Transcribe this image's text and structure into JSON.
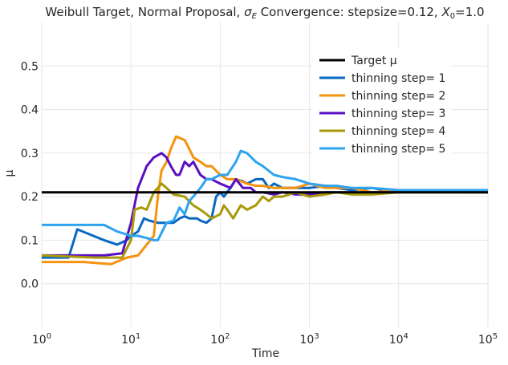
{
  "chart_data": {
    "type": "line",
    "title_parts": {
      "prefix": "Weibull Target, Normal Proposal, ",
      "sigma": "σ",
      "sigma_sub": "E",
      "middle": " Convergence: stepsize=0.12, ",
      "x": "X",
      "x_sub": "0",
      "suffix": "=1.0"
    },
    "xlabel": "Time",
    "ylabel": "μ",
    "x_scale": "log",
    "xlim": [
      1,
      100000
    ],
    "ylim": [
      -0.1,
      0.6
    ],
    "grid": true,
    "legend_position": "top-right",
    "x_ticks": [
      {
        "value": 1,
        "base": "10",
        "exp": "0"
      },
      {
        "value": 10,
        "base": "10",
        "exp": "1"
      },
      {
        "value": 100,
        "base": "10",
        "exp": "2"
      },
      {
        "value": 1000,
        "base": "10",
        "exp": "3"
      },
      {
        "value": 10000,
        "base": "10",
        "exp": "4"
      },
      {
        "value": 100000,
        "base": "10",
        "exp": "5"
      }
    ],
    "y_ticks": [
      {
        "value": 0.0,
        "label": "0.0"
      },
      {
        "value": 0.1,
        "label": "0.1"
      },
      {
        "value": 0.2,
        "label": "0.2"
      },
      {
        "value": 0.3,
        "label": "0.3"
      },
      {
        "value": 0.4,
        "label": "0.4"
      },
      {
        "value": 0.5,
        "label": "0.5"
      }
    ],
    "series": [
      {
        "name": "Target μ",
        "color": "#000000",
        "points": [
          [
            1,
            0.21
          ],
          [
            100000,
            0.21
          ]
        ]
      },
      {
        "name": "thinning step= 1",
        "color": "#0868c4",
        "points": [
          [
            1,
            0.06
          ],
          [
            2,
            0.06
          ],
          [
            2.5,
            0.125
          ],
          [
            5,
            0.1
          ],
          [
            7,
            0.09
          ],
          [
            9,
            0.1
          ],
          [
            10,
            0.11
          ],
          [
            12,
            0.12
          ],
          [
            14,
            0.15
          ],
          [
            16,
            0.145
          ],
          [
            20,
            0.14
          ],
          [
            25,
            0.14
          ],
          [
            30,
            0.14
          ],
          [
            35,
            0.15
          ],
          [
            40,
            0.155
          ],
          [
            45,
            0.15
          ],
          [
            55,
            0.15
          ],
          [
            60,
            0.145
          ],
          [
            70,
            0.14
          ],
          [
            80,
            0.15
          ],
          [
            90,
            0.2
          ],
          [
            100,
            0.21
          ],
          [
            110,
            0.2
          ],
          [
            130,
            0.22
          ],
          [
            150,
            0.24
          ],
          [
            180,
            0.235
          ],
          [
            200,
            0.23
          ],
          [
            250,
            0.24
          ],
          [
            300,
            0.24
          ],
          [
            350,
            0.22
          ],
          [
            400,
            0.23
          ],
          [
            500,
            0.22
          ],
          [
            700,
            0.22
          ],
          [
            1000,
            0.22
          ],
          [
            1500,
            0.225
          ],
          [
            2000,
            0.22
          ],
          [
            3000,
            0.215
          ],
          [
            5000,
            0.22
          ],
          [
            7000,
            0.215
          ],
          [
            10000,
            0.215
          ],
          [
            20000,
            0.215
          ],
          [
            50000,
            0.215
          ],
          [
            100000,
            0.215
          ]
        ]
      },
      {
        "name": "thinning step= 2",
        "color": "#f5920f",
        "points": [
          [
            1,
            0.05
          ],
          [
            3,
            0.05
          ],
          [
            6,
            0.045
          ],
          [
            9,
            0.06
          ],
          [
            12,
            0.065
          ],
          [
            15,
            0.09
          ],
          [
            18,
            0.11
          ],
          [
            20,
            0.2
          ],
          [
            22,
            0.26
          ],
          [
            25,
            0.28
          ],
          [
            28,
            0.31
          ],
          [
            32,
            0.338
          ],
          [
            35,
            0.335
          ],
          [
            40,
            0.33
          ],
          [
            45,
            0.31
          ],
          [
            50,
            0.29
          ],
          [
            60,
            0.28
          ],
          [
            70,
            0.27
          ],
          [
            80,
            0.27
          ],
          [
            100,
            0.25
          ],
          [
            120,
            0.24
          ],
          [
            150,
            0.24
          ],
          [
            200,
            0.23
          ],
          [
            250,
            0.225
          ],
          [
            300,
            0.225
          ],
          [
            400,
            0.22
          ],
          [
            500,
            0.22
          ],
          [
            700,
            0.22
          ],
          [
            1000,
            0.23
          ],
          [
            1500,
            0.22
          ],
          [
            2000,
            0.22
          ],
          [
            3000,
            0.22
          ],
          [
            5000,
            0.21
          ],
          [
            10000,
            0.215
          ],
          [
            20000,
            0.215
          ],
          [
            50000,
            0.21
          ],
          [
            100000,
            0.21
          ]
        ]
      },
      {
        "name": "thinning step= 3",
        "color": "#5a0ec4",
        "points": [
          [
            1,
            0.065
          ],
          [
            5,
            0.065
          ],
          [
            8,
            0.07
          ],
          [
            10,
            0.14
          ],
          [
            12,
            0.22
          ],
          [
            15,
            0.27
          ],
          [
            18,
            0.29
          ],
          [
            22,
            0.3
          ],
          [
            25,
            0.29
          ],
          [
            28,
            0.27
          ],
          [
            32,
            0.25
          ],
          [
            35,
            0.25
          ],
          [
            40,
            0.28
          ],
          [
            45,
            0.27
          ],
          [
            50,
            0.28
          ],
          [
            60,
            0.25
          ],
          [
            70,
            0.24
          ],
          [
            80,
            0.24
          ],
          [
            100,
            0.23
          ],
          [
            130,
            0.22
          ],
          [
            150,
            0.24
          ],
          [
            180,
            0.22
          ],
          [
            220,
            0.22
          ],
          [
            250,
            0.21
          ],
          [
            300,
            0.21
          ],
          [
            400,
            0.205
          ],
          [
            500,
            0.21
          ],
          [
            700,
            0.205
          ],
          [
            1000,
            0.205
          ],
          [
            1500,
            0.21
          ],
          [
            2000,
            0.21
          ],
          [
            3000,
            0.21
          ],
          [
            5000,
            0.21
          ],
          [
            10000,
            0.21
          ],
          [
            100000,
            0.215
          ]
        ]
      },
      {
        "name": "thinning step= 4",
        "color": "#a89a08",
        "points": [
          [
            1,
            0.065
          ],
          [
            4,
            0.06
          ],
          [
            8,
            0.06
          ],
          [
            10,
            0.1
          ],
          [
            11,
            0.17
          ],
          [
            13,
            0.175
          ],
          [
            15,
            0.17
          ],
          [
            18,
            0.21
          ],
          [
            20,
            0.22
          ],
          [
            22,
            0.23
          ],
          [
            25,
            0.22
          ],
          [
            30,
            0.205
          ],
          [
            40,
            0.2
          ],
          [
            50,
            0.18
          ],
          [
            60,
            0.17
          ],
          [
            70,
            0.16
          ],
          [
            80,
            0.15
          ],
          [
            90,
            0.155
          ],
          [
            100,
            0.16
          ],
          [
            110,
            0.18
          ],
          [
            120,
            0.17
          ],
          [
            140,
            0.15
          ],
          [
            170,
            0.18
          ],
          [
            200,
            0.17
          ],
          [
            250,
            0.18
          ],
          [
            300,
            0.2
          ],
          [
            350,
            0.19
          ],
          [
            400,
            0.2
          ],
          [
            500,
            0.2
          ],
          [
            700,
            0.21
          ],
          [
            1000,
            0.2
          ],
          [
            1500,
            0.205
          ],
          [
            2000,
            0.21
          ],
          [
            3000,
            0.205
          ],
          [
            5000,
            0.205
          ],
          [
            10000,
            0.21
          ],
          [
            20000,
            0.21
          ],
          [
            100000,
            0.21
          ]
        ]
      },
      {
        "name": "thinning step= 5",
        "color": "#2ea3f0",
        "points": [
          [
            1,
            0.135
          ],
          [
            2,
            0.135
          ],
          [
            3,
            0.135
          ],
          [
            5,
            0.135
          ],
          [
            7,
            0.12
          ],
          [
            10,
            0.11
          ],
          [
            12,
            0.11
          ],
          [
            15,
            0.105
          ],
          [
            18,
            0.1
          ],
          [
            20,
            0.1
          ],
          [
            25,
            0.14
          ],
          [
            30,
            0.145
          ],
          [
            35,
            0.175
          ],
          [
            40,
            0.16
          ],
          [
            45,
            0.19
          ],
          [
            50,
            0.2
          ],
          [
            60,
            0.22
          ],
          [
            70,
            0.24
          ],
          [
            80,
            0.24
          ],
          [
            100,
            0.25
          ],
          [
            120,
            0.25
          ],
          [
            150,
            0.28
          ],
          [
            170,
            0.305
          ],
          [
            200,
            0.3
          ],
          [
            250,
            0.28
          ],
          [
            300,
            0.27
          ],
          [
            400,
            0.25
          ],
          [
            500,
            0.245
          ],
          [
            700,
            0.24
          ],
          [
            1000,
            0.23
          ],
          [
            1500,
            0.225
          ],
          [
            2000,
            0.225
          ],
          [
            3000,
            0.22
          ],
          [
            5000,
            0.22
          ],
          [
            10000,
            0.215
          ],
          [
            20000,
            0.215
          ],
          [
            50000,
            0.215
          ],
          [
            100000,
            0.215
          ]
        ]
      }
    ]
  }
}
